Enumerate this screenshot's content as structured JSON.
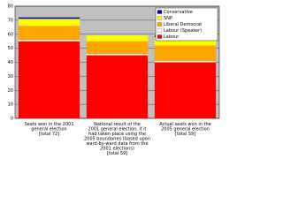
{
  "chart_data": {
    "type": "stacked-bar",
    "categories": [
      "Seats won in the 2001\ngeneral election\n[total 72]",
      "National result of the\n2001 general election, if it\nhad taken place using the\n2005 boundaries (based upon\nward-by-ward data from the\n2001 elections)\n[total 59]",
      "Actual seats won in the\n2005 general election\n[total 59]"
    ],
    "series": [
      {
        "name": "Labour",
        "color": "#ff0000",
        "values": [
          55,
          45,
          40
        ]
      },
      {
        "name": "Labour (Speaker)",
        "color": "#ffffff",
        "values": [
          1,
          1,
          1
        ]
      },
      {
        "name": "Liberal Democrat",
        "color": "#ffa500",
        "values": [
          10,
          9,
          11
        ]
      },
      {
        "name": "SNP",
        "color": "#ffff00",
        "values": [
          5,
          4,
          6
        ]
      },
      {
        "name": "Conservative",
        "color": "#0000c0",
        "values": [
          1,
          0,
          1
        ]
      }
    ],
    "ylim": [
      0,
      80
    ],
    "yticks": [
      0,
      10,
      20,
      30,
      40,
      50,
      60,
      70,
      80
    ],
    "grid": true,
    "legend": "top-right"
  }
}
